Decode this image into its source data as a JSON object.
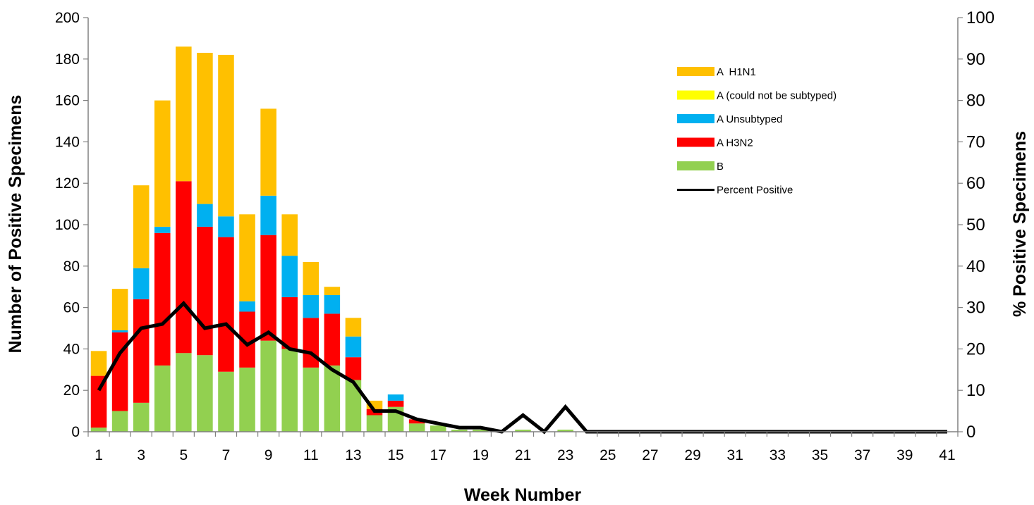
{
  "chart_data": {
    "type": "bar",
    "stacked": true,
    "x": [
      1,
      2,
      3,
      4,
      5,
      6,
      7,
      8,
      9,
      10,
      11,
      12,
      13,
      14,
      15,
      16,
      17,
      18,
      19,
      20,
      21,
      22,
      23,
      24,
      25,
      26,
      27,
      28,
      29,
      30,
      31,
      32,
      33,
      34,
      35,
      36,
      37,
      38,
      39,
      40,
      41
    ],
    "x_tick_labels": [
      "1",
      "3",
      "5",
      "7",
      "9",
      "11",
      "13",
      "15",
      "17",
      "19",
      "21",
      "23",
      "25",
      "27",
      "29",
      "31",
      "33",
      "35",
      "37",
      "39",
      "41"
    ],
    "xlabel": "Week Number",
    "ylabel": "Number of Positive Specimens",
    "y2label": "% Positive Specimens",
    "ylim": [
      0,
      200
    ],
    "y_ticks": [
      "0",
      "20",
      "40",
      "60",
      "80",
      "100",
      "120",
      "140",
      "160",
      "180",
      "200"
    ],
    "y2lim": [
      0,
      100
    ],
    "y2_ticks": [
      "0",
      "10",
      "20",
      "30",
      "40",
      "50",
      "60",
      "70",
      "80",
      "90",
      "100"
    ],
    "grid": false,
    "legend_position": "top-right",
    "series": [
      {
        "name": "B",
        "color": "#92D050",
        "values": [
          2,
          10,
          14,
          32,
          38,
          37,
          29,
          31,
          44,
          40,
          31,
          32,
          25,
          8,
          12,
          4,
          3,
          1,
          1,
          0,
          1,
          0,
          1,
          0,
          0,
          0,
          0,
          0,
          0,
          0,
          0,
          0,
          0,
          0,
          0,
          0,
          0,
          0,
          0,
          0,
          0
        ]
      },
      {
        "name": "A H3N2",
        "color": "#FF0000",
        "values": [
          25,
          38,
          50,
          64,
          83,
          62,
          65,
          27,
          51,
          25,
          24,
          25,
          11,
          3,
          3,
          2,
          0,
          0,
          0,
          0,
          0,
          0,
          0,
          0,
          0,
          0,
          0,
          0,
          0,
          0,
          0,
          0,
          0,
          0,
          0,
          0,
          0,
          0,
          0,
          0,
          0
        ]
      },
      {
        "name": "A Unsubtyped",
        "color": "#00B0F0",
        "values": [
          0,
          1,
          15,
          3,
          0,
          11,
          10,
          5,
          19,
          20,
          11,
          9,
          10,
          0,
          3,
          0,
          0,
          0,
          0,
          0,
          0,
          0,
          0,
          0,
          0,
          0,
          0,
          0,
          0,
          0,
          0,
          0,
          0,
          0,
          0,
          0,
          0,
          0,
          0,
          0,
          0
        ]
      },
      {
        "name": "A (could not be subtyped)",
        "color": "#FFFF00",
        "values": [
          0,
          0,
          0,
          0,
          0,
          0,
          0,
          0,
          0,
          0,
          0,
          0,
          0,
          0,
          0,
          0,
          0,
          0,
          0,
          0,
          0,
          0,
          0,
          0,
          0,
          0,
          0,
          0,
          0,
          0,
          0,
          0,
          0,
          0,
          0,
          0,
          0,
          0,
          0,
          0,
          0
        ]
      },
      {
        "name": "A  H1N1",
        "color": "#FFC000",
        "values": [
          12,
          20,
          40,
          61,
          65,
          73,
          78,
          42,
          42,
          20,
          16,
          4,
          9,
          4,
          0,
          0,
          0,
          0,
          0,
          0,
          0,
          0,
          0,
          0,
          0,
          0,
          0,
          0,
          0,
          0,
          0,
          0,
          0,
          0,
          0,
          0,
          0,
          0,
          0,
          0,
          0
        ]
      }
    ],
    "line": {
      "name": "Percent Positive",
      "color": "#000000",
      "axis": "right",
      "values": [
        10,
        19,
        25,
        26,
        31,
        25,
        26,
        21,
        24,
        20,
        19,
        15,
        12,
        5,
        5,
        3,
        2,
        1,
        1,
        0,
        4,
        0,
        6,
        0,
        0,
        0,
        0,
        0,
        0,
        0,
        0,
        0,
        0,
        0,
        0,
        0,
        0,
        0,
        0,
        0,
        0
      ]
    },
    "legend_order": [
      "A  H1N1",
      "A (could not be subtyped)",
      "A Unsubtyped",
      "A H3N2",
      "B",
      "Percent Positive"
    ]
  }
}
